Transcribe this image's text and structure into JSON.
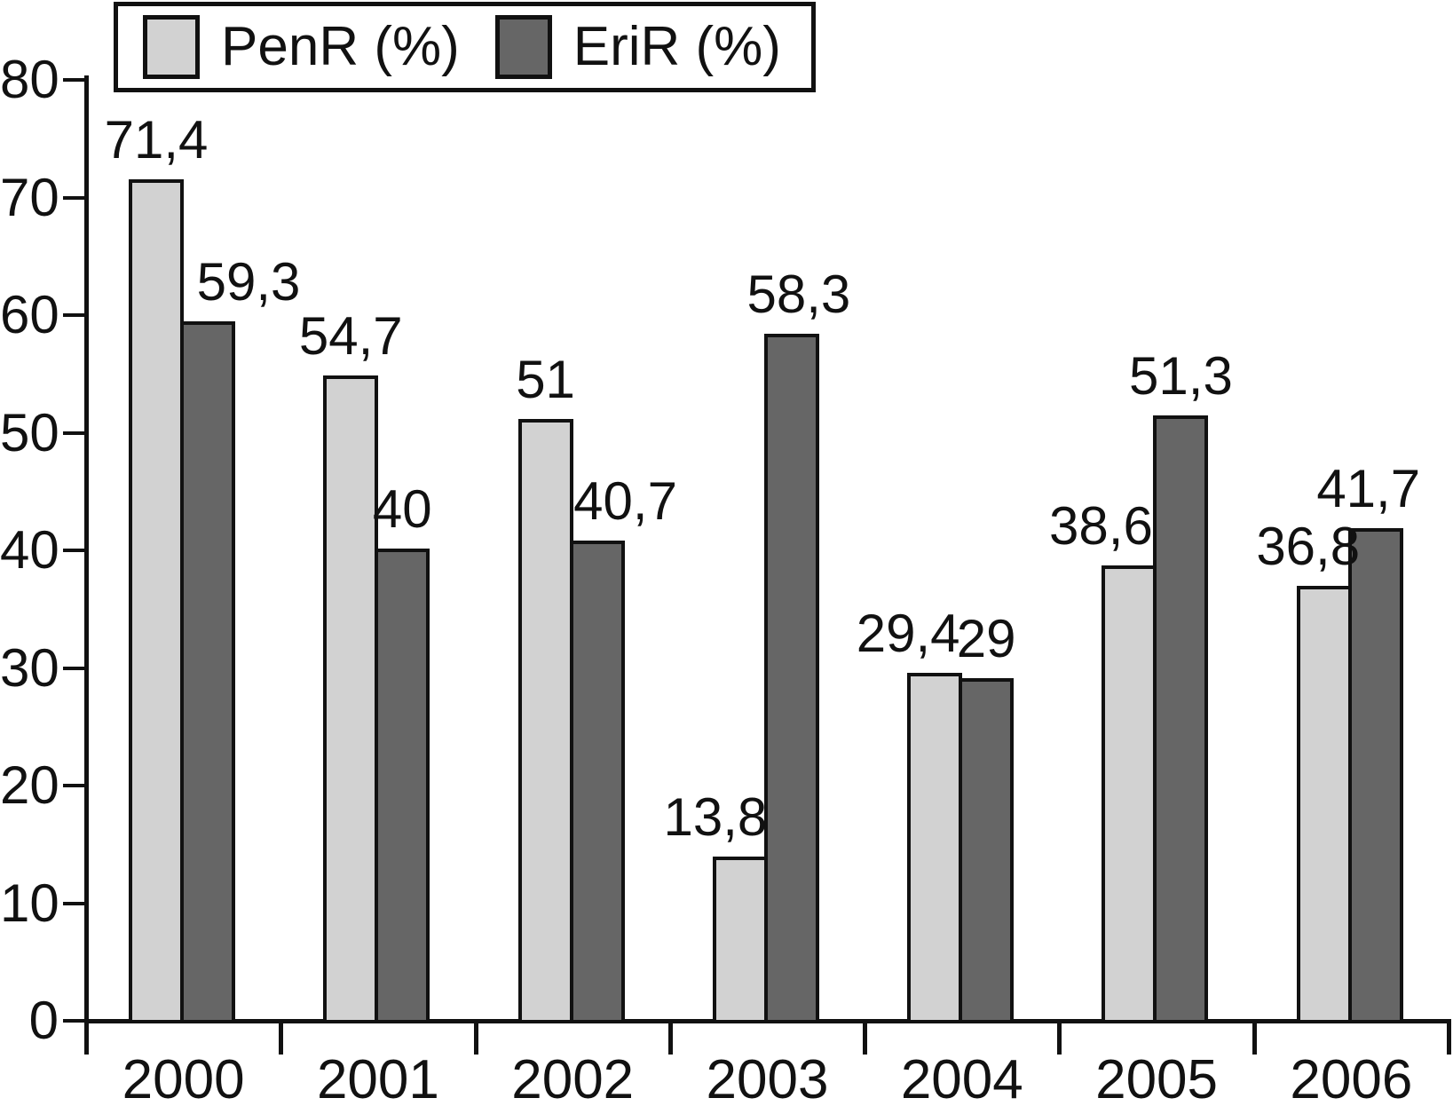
{
  "chart_data": {
    "type": "bar",
    "title": "",
    "xlabel": "",
    "ylabel": "",
    "categories": [
      "2000",
      "2001",
      "2002",
      "2003",
      "2004",
      "2005",
      "2006"
    ],
    "series": [
      {
        "name": "PenR (%)",
        "color": "#d2d2d2",
        "values": [
          71.4,
          54.7,
          51,
          13.8,
          29.4,
          38.6,
          36.8
        ],
        "labels": [
          "71,4",
          "54,7",
          "51",
          "13,8",
          "29,4",
          "38,6",
          "36,8"
        ],
        "label_dx": [
          0,
          0,
          0,
          -28,
          -30,
          -32,
          -18
        ]
      },
      {
        "name": "EriR (%)",
        "color": "#666666",
        "values": [
          59.3,
          40,
          40.7,
          58.3,
          29,
          51.3,
          41.7
        ],
        "labels": [
          "59,3",
          "40",
          "40,7",
          "58,3",
          "29",
          "51,3",
          "41,7"
        ],
        "label_dx": [
          46,
          0,
          32,
          8,
          0,
          0,
          -8
        ]
      }
    ],
    "ylim": [
      0,
      80
    ],
    "yticks": [
      0,
      10,
      20,
      30,
      40,
      50,
      60,
      70,
      80
    ],
    "grid": false,
    "legend_position": "top-left",
    "decimal_separator": ",",
    "axis_color": "#111111",
    "background_color": "#ffffff"
  }
}
